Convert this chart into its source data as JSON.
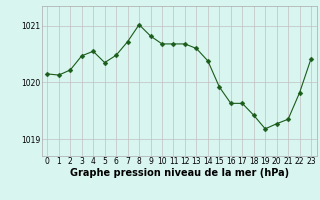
{
  "x": [
    0,
    1,
    2,
    3,
    4,
    5,
    6,
    7,
    8,
    9,
    10,
    11,
    12,
    13,
    14,
    15,
    16,
    17,
    18,
    19,
    20,
    21,
    22,
    23
  ],
  "y": [
    1020.15,
    1020.13,
    1020.22,
    1020.47,
    1020.55,
    1020.35,
    1020.48,
    1020.72,
    1021.02,
    1020.82,
    1020.68,
    1020.68,
    1020.68,
    1020.6,
    1020.38,
    1019.92,
    1019.63,
    1019.63,
    1019.42,
    1019.18,
    1019.27,
    1019.35,
    1019.82,
    1020.42
  ],
  "line_color": "#1a5c1a",
  "marker": "D",
  "marker_size": 2.5,
  "bg_color": "#d8f5f0",
  "grid_color_major": "#c0c0c0",
  "grid_color_minor": "#d8d8d8",
  "xlabel": "Graphe pression niveau de la mer (hPa)",
  "xlabel_fontsize": 7,
  "xlabel_bold": true,
  "ytick_labels": [
    "1019",
    "1020",
    "1021"
  ],
  "ytick_values": [
    1019,
    1020,
    1021
  ],
  "ylim": [
    1018.7,
    1021.35
  ],
  "xlim": [
    -0.5,
    23.5
  ],
  "xtick_labels": [
    "0",
    "1",
    "2",
    "3",
    "4",
    "5",
    "6",
    "7",
    "8",
    "9",
    "10",
    "11",
    "12",
    "13",
    "14",
    "15",
    "16",
    "17",
    "18",
    "19",
    "20",
    "21",
    "22",
    "23"
  ],
  "tick_fontsize": 5.5
}
